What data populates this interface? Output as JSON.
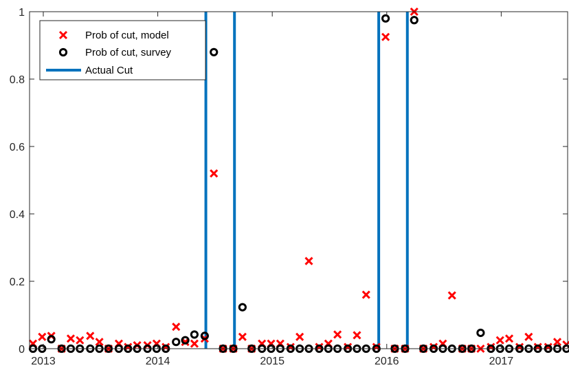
{
  "chart_data": {
    "type": "scatter",
    "title": "",
    "xlabel": "",
    "ylabel": "",
    "xlim": [
      2012.88,
      2017.58
    ],
    "ylim": [
      0,
      1
    ],
    "x_ticks": [
      2013,
      2014,
      2015,
      2016,
      2017
    ],
    "x_tick_labels": [
      "2013",
      "2014",
      "2015",
      "2016",
      "2017"
    ],
    "y_ticks": [
      0,
      0.2,
      0.4,
      0.6,
      0.8,
      1
    ],
    "y_tick_labels": [
      "0",
      "0.2",
      "0.4",
      "0.6",
      "0.8",
      "1"
    ],
    "grid": false,
    "legend_position": "top-left",
    "colors": {
      "model": "#ff0000",
      "survey": "#000000",
      "cut": "#0072bd"
    },
    "series": [
      {
        "name": "Prob of cut, model",
        "marker": "x",
        "x": [
          2012.91,
          2012.99,
          2013.07,
          2013.16,
          2013.24,
          2013.32,
          2013.41,
          2013.49,
          2013.57,
          2013.66,
          2013.74,
          2013.82,
          2013.91,
          2013.99,
          2014.07,
          2014.16,
          2014.24,
          2014.32,
          2014.41,
          2014.49,
          2014.57,
          2014.66,
          2014.74,
          2014.82,
          2014.91,
          2014.99,
          2015.07,
          2015.16,
          2015.24,
          2015.32,
          2015.41,
          2015.49,
          2015.57,
          2015.66,
          2015.74,
          2015.82,
          2015.91,
          2015.99,
          2016.07,
          2016.16,
          2016.24,
          2016.32,
          2016.41,
          2016.49,
          2016.57,
          2016.66,
          2016.74,
          2016.82,
          2016.91,
          2016.99,
          2017.07,
          2017.16,
          2017.24,
          2017.32,
          2017.41,
          2017.49,
          2017.57
        ],
        "y": [
          0.015,
          0.035,
          0.038,
          0.0,
          0.03,
          0.025,
          0.038,
          0.02,
          0.0,
          0.015,
          0.005,
          0.01,
          0.01,
          0.015,
          0.005,
          0.065,
          0.02,
          0.015,
          0.03,
          0.52,
          0.0,
          0.0,
          0.035,
          0.0,
          0.015,
          0.015,
          0.015,
          0.005,
          0.035,
          0.26,
          0.005,
          0.015,
          0.042,
          0.005,
          0.04,
          0.16,
          0.005,
          0.925,
          0.0,
          0.0,
          1.0,
          0.0,
          0.005,
          0.015,
          0.158,
          0.0,
          0.0,
          0.0,
          0.005,
          0.025,
          0.03,
          0.005,
          0.035,
          0.005,
          0.005,
          0.02,
          0.012
        ]
      },
      {
        "name": "Prob of cut, survey",
        "marker": "circle",
        "x": [
          2012.91,
          2012.99,
          2013.07,
          2013.16,
          2013.24,
          2013.32,
          2013.41,
          2013.49,
          2013.57,
          2013.66,
          2013.74,
          2013.82,
          2013.91,
          2013.99,
          2014.07,
          2014.16,
          2014.24,
          2014.32,
          2014.41,
          2014.49,
          2014.57,
          2014.66,
          2014.74,
          2014.82,
          2014.91,
          2014.99,
          2015.07,
          2015.16,
          2015.24,
          2015.32,
          2015.41,
          2015.49,
          2015.57,
          2015.66,
          2015.74,
          2015.82,
          2015.91,
          2015.99,
          2016.07,
          2016.16,
          2016.24,
          2016.32,
          2016.41,
          2016.49,
          2016.57,
          2016.66,
          2016.74,
          2016.82,
          2016.91,
          2016.99,
          2017.07,
          2017.16,
          2017.24,
          2017.32,
          2017.41,
          2017.49,
          2017.57
        ],
        "y": [
          0.0,
          0.0,
          0.028,
          0.0,
          0.0,
          0.0,
          0.0,
          0.0,
          0.0,
          0.0,
          0.0,
          0.0,
          0.0,
          0.0,
          0.0,
          0.02,
          0.025,
          0.042,
          0.038,
          0.88,
          0.0,
          0.0,
          0.123,
          0.0,
          0.0,
          0.0,
          0.0,
          0.0,
          0.0,
          0.0,
          0.0,
          0.0,
          0.0,
          0.0,
          0.0,
          0.0,
          0.0,
          0.98,
          0.0,
          0.0,
          0.975,
          0.0,
          0.0,
          0.0,
          0.0,
          0.0,
          0.0,
          0.047,
          0.0,
          0.0,
          0.0,
          0.0,
          0.0,
          0.0,
          0.0,
          0.0,
          0.0
        ]
      },
      {
        "name": "Actual Cut",
        "marker": "vline",
        "x": [
          2014.42,
          2014.67,
          2015.93,
          2016.18
        ],
        "y": [
          1,
          1,
          1,
          1
        ]
      }
    ]
  }
}
